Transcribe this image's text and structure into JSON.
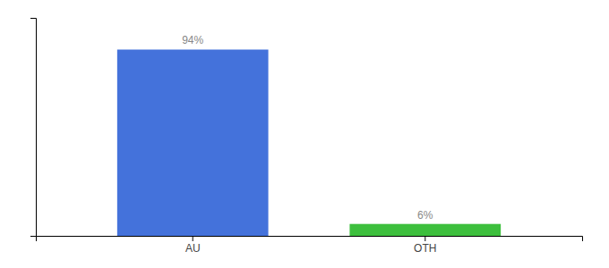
{
  "chart_data": {
    "type": "bar",
    "categories": [
      "AU",
      "OTH"
    ],
    "values": [
      94,
      6
    ],
    "value_labels": [
      "94%",
      "6%"
    ],
    "colors": [
      "#4472db",
      "#3dbf3d"
    ],
    "ylim": [
      0,
      110
    ],
    "data_labels": true,
    "tick_labels": "x"
  }
}
